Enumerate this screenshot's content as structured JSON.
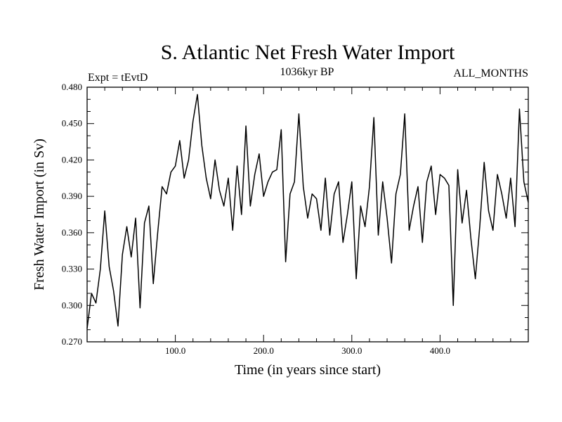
{
  "chart_data": {
    "type": "line",
    "title": "S. Atlantic Net Fresh Water Import",
    "subtitle_left": "Expt = tEvtD",
    "subtitle_center": "1036kyr BP",
    "subtitle_right": "ALL_MONTHS",
    "xlabel": "Time (in years since start)",
    "ylabel": "Fresh Water Import (in Sv)",
    "xlim": [
      0,
      500
    ],
    "ylim": [
      0.27,
      0.48
    ],
    "x_ticks": [
      100,
      200,
      300,
      400
    ],
    "x_tick_labels": [
      "100.0",
      "200.0",
      "300.0",
      "400.0"
    ],
    "y_ticks": [
      0.27,
      0.3,
      0.33,
      0.36,
      0.39,
      0.42,
      0.45,
      0.48
    ],
    "y_tick_labels": [
      "0.270",
      "0.300",
      "0.330",
      "0.360",
      "0.390",
      "0.420",
      "0.450",
      "0.480"
    ],
    "grid": false,
    "series": [
      {
        "name": "Fresh Water Import",
        "x": [
          0,
          5,
          10,
          15,
          20,
          25,
          30,
          35,
          40,
          45,
          50,
          55,
          60,
          65,
          70,
          75,
          80,
          85,
          90,
          95,
          100,
          105,
          110,
          115,
          120,
          125,
          130,
          135,
          140,
          145,
          150,
          155,
          160,
          165,
          170,
          175,
          180,
          185,
          190,
          195,
          200,
          205,
          210,
          215,
          220,
          225,
          230,
          235,
          240,
          245,
          250,
          255,
          260,
          265,
          270,
          275,
          280,
          285,
          290,
          295,
          300,
          305,
          310,
          315,
          320,
          325,
          330,
          335,
          340,
          345,
          350,
          355,
          360,
          365,
          370,
          375,
          380,
          385,
          390,
          395,
          400,
          405,
          410,
          415,
          420,
          425,
          430,
          435,
          440,
          445,
          450,
          455,
          460,
          465,
          470,
          475,
          480,
          485,
          490,
          495,
          500
        ],
        "values": [
          0.281,
          0.31,
          0.302,
          0.33,
          0.378,
          0.332,
          0.312,
          0.283,
          0.342,
          0.365,
          0.34,
          0.372,
          0.298,
          0.368,
          0.382,
          0.318,
          0.36,
          0.398,
          0.392,
          0.41,
          0.415,
          0.436,
          0.405,
          0.42,
          0.452,
          0.474,
          0.432,
          0.405,
          0.388,
          0.42,
          0.395,
          0.382,
          0.405,
          0.362,
          0.415,
          0.375,
          0.448,
          0.382,
          0.408,
          0.425,
          0.39,
          0.402,
          0.41,
          0.412,
          0.445,
          0.336,
          0.392,
          0.402,
          0.458,
          0.398,
          0.372,
          0.392,
          0.388,
          0.362,
          0.405,
          0.358,
          0.392,
          0.402,
          0.352,
          0.375,
          0.402,
          0.322,
          0.382,
          0.365,
          0.398,
          0.455,
          0.358,
          0.402,
          0.372,
          0.335,
          0.392,
          0.408,
          0.458,
          0.362,
          0.382,
          0.398,
          0.352,
          0.402,
          0.415,
          0.375,
          0.408,
          0.405,
          0.399,
          0.3,
          0.412,
          0.368,
          0.395,
          0.355,
          0.322,
          0.365,
          0.418,
          0.378,
          0.362,
          0.408,
          0.392,
          0.372,
          0.405,
          0.365,
          0.462,
          0.402,
          0.385
        ]
      }
    ]
  }
}
